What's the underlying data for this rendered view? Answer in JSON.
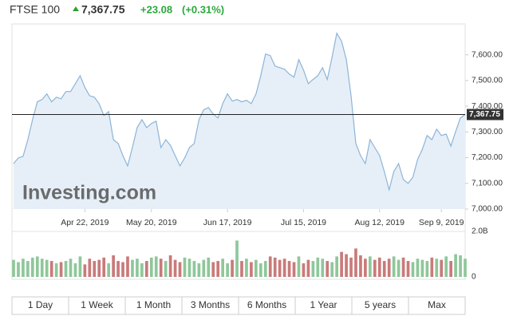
{
  "header": {
    "name": "FTSE 100",
    "price": "7,367.75",
    "change": "+23.08",
    "change_pct": "(+0.31%)"
  },
  "watermark": "Investing.com",
  "chart_data": [
    {
      "type": "area",
      "categories": [
        null,
        null,
        null,
        null,
        null,
        null,
        null,
        null,
        null,
        null,
        null,
        null,
        null,
        null,
        null,
        "Apr 22, 2019",
        null,
        null,
        null,
        null,
        null,
        null,
        null,
        null,
        null,
        null,
        null,
        null,
        null,
        "May 20, 2019",
        null,
        null,
        null,
        null,
        null,
        null,
        null,
        null,
        null,
        null,
        null,
        null,
        null,
        null,
        null,
        "Jun 17, 2019",
        null,
        null,
        null,
        null,
        null,
        null,
        null,
        null,
        null,
        null,
        null,
        null,
        null,
        null,
        null,
        "Jul 15, 2019",
        null,
        null,
        null,
        null,
        null,
        null,
        null,
        null,
        null,
        null,
        null,
        null,
        null,
        null,
        null,
        "Aug 12, 2019",
        null,
        null,
        null,
        null,
        null,
        null,
        null,
        null,
        null,
        null,
        null,
        null,
        "Sep 9, 2019",
        null,
        null,
        null,
        null,
        null
      ],
      "values": [
        7177,
        7199,
        7205,
        7270,
        7348,
        7417,
        7426,
        7448,
        7417,
        7435,
        7429,
        7457,
        7457,
        7488,
        7519,
        7473,
        7441,
        7435,
        7410,
        7364,
        7379,
        7270,
        7255,
        7208,
        7168,
        7239,
        7317,
        7348,
        7317,
        7333,
        7342,
        7239,
        7270,
        7248,
        7208,
        7168,
        7199,
        7239,
        7255,
        7348,
        7386,
        7395,
        7370,
        7354,
        7410,
        7448,
        7420,
        7426,
        7417,
        7423,
        7410,
        7448,
        7519,
        7603,
        7597,
        7556,
        7550,
        7544,
        7525,
        7513,
        7581,
        7541,
        7488,
        7504,
        7519,
        7550,
        7504,
        7591,
        7684,
        7653,
        7581,
        7441,
        7255,
        7208,
        7177,
        7270,
        7239,
        7208,
        7146,
        7075,
        7146,
        7177,
        7115,
        7100,
        7124,
        7193,
        7233,
        7286,
        7270,
        7311,
        7286,
        7292,
        7245,
        7302,
        7354,
        7367.75
      ],
      "color": "#8cb4d8",
      "fill": "#e6eff7",
      "ylim": [
        7000,
        7720
      ],
      "yticks": [
        {
          "value": 7000,
          "label": "7,000.00"
        },
        {
          "value": 7100,
          "label": "7,100.00"
        },
        {
          "value": 7200,
          "label": "7,200.00"
        },
        {
          "value": 7300,
          "label": "7,300.00"
        },
        {
          "value": 7400,
          "label": "7,400.00"
        },
        {
          "value": 7500,
          "label": "7,500.00"
        },
        {
          "value": 7600,
          "label": "7,600.00"
        }
      ],
      "last_price": {
        "value": 7367.75,
        "label": "7,367.75"
      },
      "grid": false
    },
    {
      "type": "bar",
      "values": [
        0.75,
        0.65,
        0.8,
        0.7,
        0.85,
        0.9,
        0.8,
        0.75,
        0.7,
        0.6,
        0.65,
        0.7,
        0.8,
        0.6,
        0.9,
        0.55,
        0.8,
        0.7,
        0.75,
        0.85,
        0.6,
        0.95,
        0.7,
        0.65,
        0.9,
        0.75,
        0.8,
        0.6,
        0.7,
        0.85,
        0.9,
        0.8,
        0.7,
        0.95,
        0.75,
        0.65,
        0.85,
        0.8,
        0.7,
        0.6,
        0.75,
        0.85,
        0.65,
        0.7,
        0.8,
        0.6,
        0.75,
        1.6,
        0.7,
        0.8,
        0.65,
        0.75,
        0.6,
        0.7,
        0.9,
        0.85,
        0.75,
        0.8,
        0.7,
        0.65,
        0.9,
        0.6,
        0.75,
        0.7,
        0.85,
        0.8,
        0.7,
        0.65,
        0.9,
        1.1,
        1.0,
        0.85,
        1.25,
        0.95,
        0.8,
        0.9,
        0.75,
        0.85,
        0.7,
        0.8,
        0.9,
        0.75,
        0.85,
        0.7,
        0.65,
        0.8,
        0.75,
        0.7,
        0.85,
        0.8,
        0.75,
        0.9,
        0.7,
        1.0,
        0.95,
        0.8
      ],
      "up_color": "#8fc79a",
      "down_color": "#c97a7a",
      "ylim": [
        0,
        2
      ],
      "yticks": [
        0,
        {
          "value": 2,
          "label": "2.0B"
        }
      ]
    }
  ],
  "buttons": [
    "1 Day",
    "1 Week",
    "1 Month",
    "3 Months",
    "6 Months",
    "1 Year",
    "5 years",
    "Max"
  ]
}
